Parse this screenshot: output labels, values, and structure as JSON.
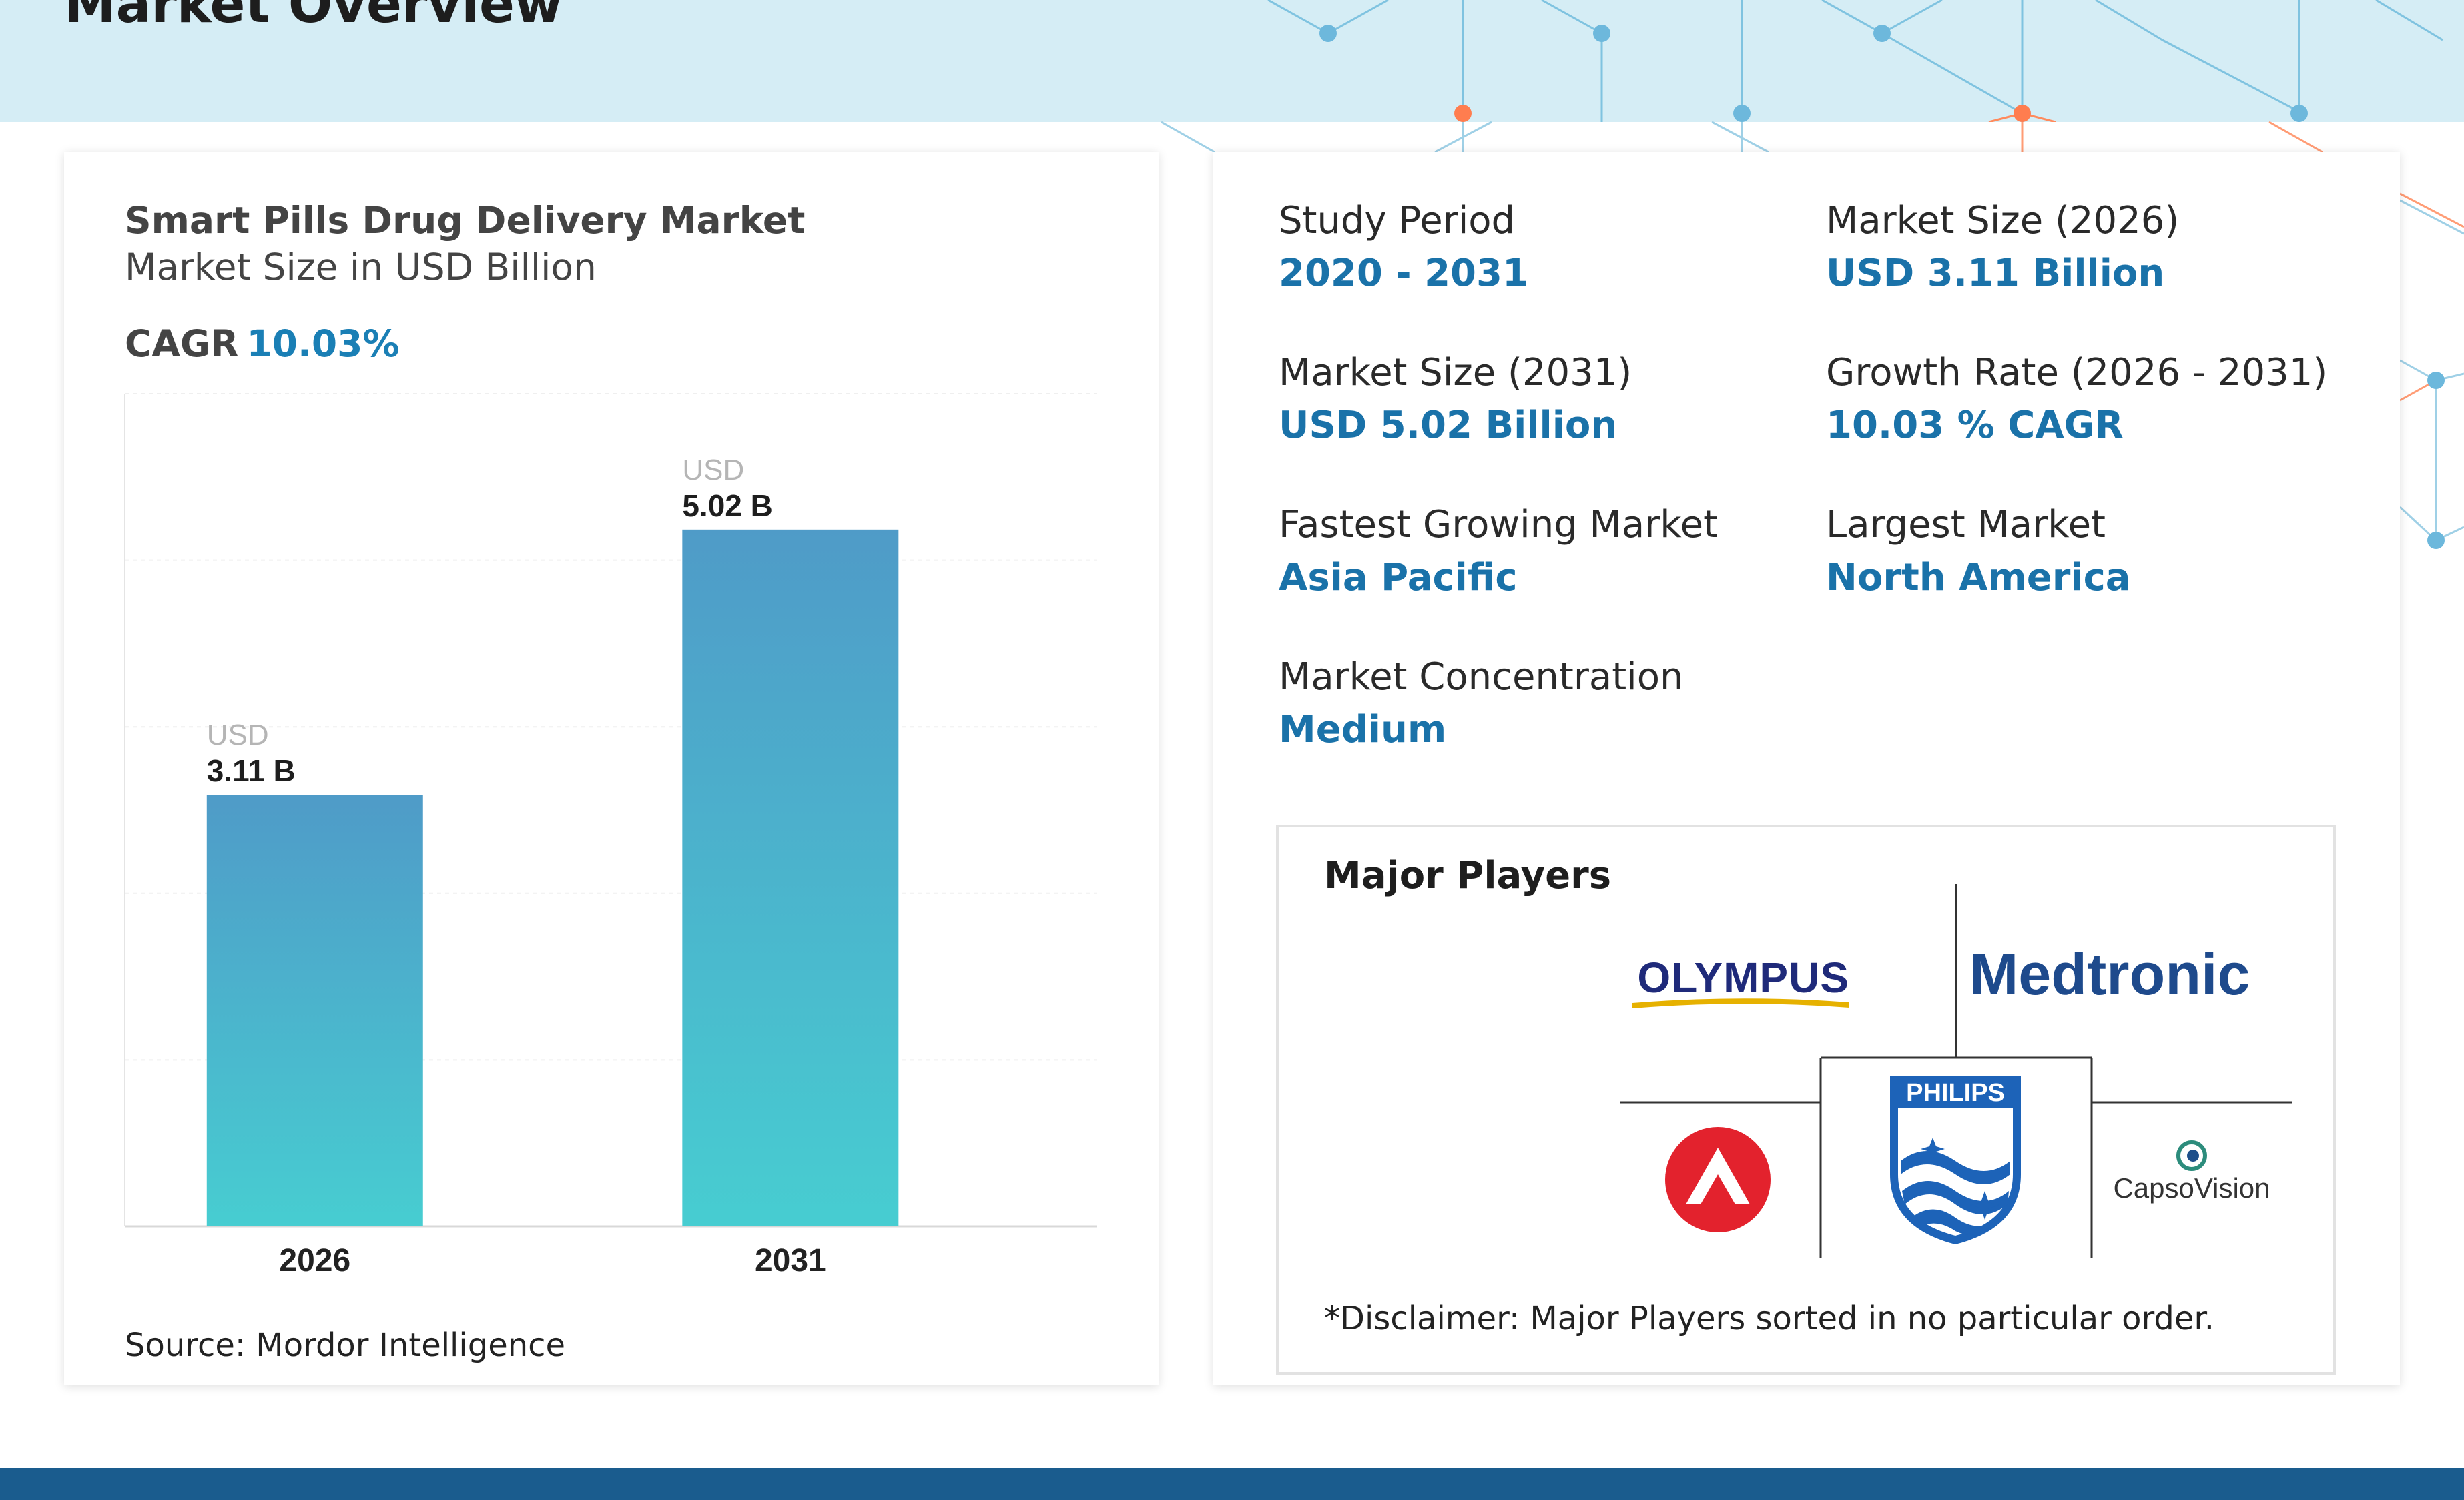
{
  "header": {
    "title": "Market Overview"
  },
  "chart_data": {
    "type": "bar",
    "title": "Smart Pills Drug Delivery Market",
    "subtitle": "Market Size in USD Billion",
    "cagr_label": "CAGR",
    "cagr_value": "10.03%",
    "categories": [
      "2026",
      "2031"
    ],
    "values": [
      3.11,
      5.02
    ],
    "value_prefix": [
      "USD",
      "USD"
    ],
    "value_labels": [
      "3.11 B",
      "5.02 B"
    ],
    "ylim": [
      0,
      6
    ],
    "grid": true,
    "colors": {
      "bar_top": "#4f9bc8",
      "bar_bottom": "#47cdd1"
    },
    "source": "Source: Mordor Intelligence"
  },
  "stats": {
    "study_period_label": "Study Period",
    "study_period_value": "2020 - 2031",
    "size_2026_label": "Market Size (2026)",
    "size_2026_value": "USD 3.11 Billion",
    "size_2031_label": "Market Size (2031)",
    "size_2031_value": "USD 5.02 Billion",
    "growth_label": "Growth Rate (2026 - 2031)",
    "growth_value": "10.03 % CAGR",
    "fastest_label": "Fastest Growing Market",
    "fastest_value": "Asia Pacific",
    "largest_label": "Largest Market",
    "largest_value": "North America",
    "concentration_label": "Market Concentration",
    "concentration_value": "Medium"
  },
  "players": {
    "title": "Major Players",
    "logos": [
      "OLYMPUS",
      "Medtronic",
      "PHILIPS",
      "CapsoVision"
    ],
    "logo_icons": [
      "olympus-logo",
      "medtronic-logo",
      "philips-shield-logo",
      "red-circle-logo",
      "capsovision-logo"
    ],
    "disclaimer": "*Disclaimer: Major Players sorted in no particular order."
  },
  "colors": {
    "accent": "#1a72a9",
    "header_bg": "#d5edf5",
    "footer_bg": "#1a5c8e"
  }
}
